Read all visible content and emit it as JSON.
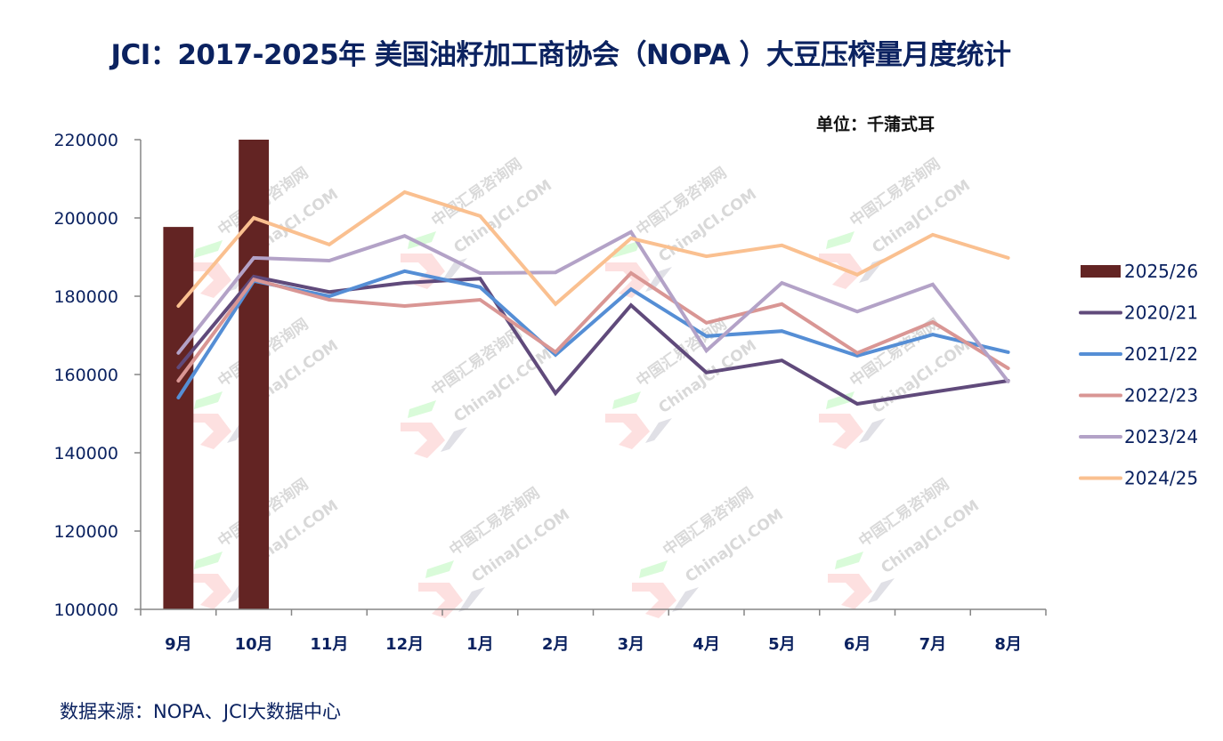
{
  "title": "JCI：2017-2025年 美国油籽加工商协会（NOPA ）大豆压榨量月度统计",
  "unit_label": "单位：千蒲式耳",
  "source_label": "数据来源：NOPA、JCI大数据中心",
  "watermark": {
    "cn": "中国汇易咨询网",
    "en": "ChinaJCI.COM"
  },
  "chart_data": {
    "type": "bar+line",
    "title": "JCI：2017-2025年 美国油籽加工商协会（NOPA ）大豆压榨量月度统计",
    "xlabel": "",
    "ylabel": "千蒲式耳",
    "ylim": [
      100000,
      220000
    ],
    "yticks": [
      100000,
      120000,
      140000,
      160000,
      180000,
      200000,
      220000
    ],
    "grid": false,
    "legend_position": "right",
    "categories": [
      "9月",
      "10月",
      "11月",
      "12月",
      "1月",
      "2月",
      "3月",
      "4月",
      "5月",
      "6月",
      "7月",
      "8月"
    ],
    "bar_series": [
      {
        "name": "2025/26",
        "color": "#632423",
        "values": [
          197700,
          220000,
          null,
          null,
          null,
          null,
          null,
          null,
          null,
          null,
          null,
          null
        ]
      }
    ],
    "series": [
      {
        "name": "2020/21",
        "color": "#604a7b",
        "values": [
          161800,
          185000,
          181100,
          183400,
          184500,
          155200,
          177700,
          160500,
          163600,
          152500,
          155500,
          158400
        ]
      },
      {
        "name": "2021/22",
        "color": "#558ed5",
        "values": [
          154100,
          183900,
          180000,
          186400,
          182300,
          165000,
          181800,
          169800,
          171100,
          164800,
          170200,
          165700
        ]
      },
      {
        "name": "2022/23",
        "color": "#d99694",
        "values": [
          158400,
          184300,
          179100,
          177500,
          179100,
          165700,
          185900,
          173200,
          178000,
          165500,
          173400,
          161600
        ]
      },
      {
        "name": "2023/24",
        "color": "#b3a2c7",
        "values": [
          165500,
          189800,
          189100,
          195400,
          185900,
          186100,
          196400,
          166100,
          183400,
          176100,
          183000,
          158200
        ]
      },
      {
        "name": "2024/25",
        "color": "#fac090",
        "values": [
          177500,
          200000,
          193200,
          206600,
          200500,
          178000,
          194800,
          190200,
          193000,
          185500,
          195700,
          189800
        ]
      }
    ]
  }
}
